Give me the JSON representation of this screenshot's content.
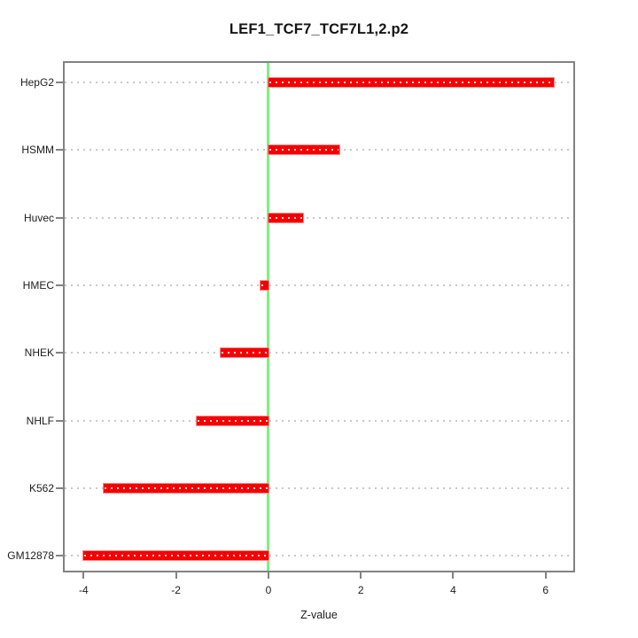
{
  "chart_data": {
    "type": "bar",
    "orientation": "horizontal",
    "title": "LEF1_TCF7_TCF7L1,2.p2",
    "xlabel": "Z-value",
    "ylabel": "",
    "categories": [
      "HepG2",
      "HSMM",
      "Huvec",
      "HMEC",
      "NHEK",
      "NHLF",
      "K562",
      "GM12878"
    ],
    "values": [
      6.18,
      1.54,
      0.75,
      -0.18,
      -1.03,
      -1.56,
      -3.57,
      -4.0
    ],
    "x_ticks": [
      -4,
      -2,
      0,
      2,
      4,
      6
    ],
    "xlim": [
      -4.41,
      6.6
    ],
    "zero_line_x": 0,
    "grid": "dotted-horizontal-per-category",
    "legend": "none",
    "colors": {
      "bar": "#f50000",
      "bar_edge": "#ff8a8a",
      "zero_line": "#7df07d",
      "grid_dots": "#c9c9c9",
      "axis_box": "#828282",
      "text": "#1c1c1c"
    }
  }
}
